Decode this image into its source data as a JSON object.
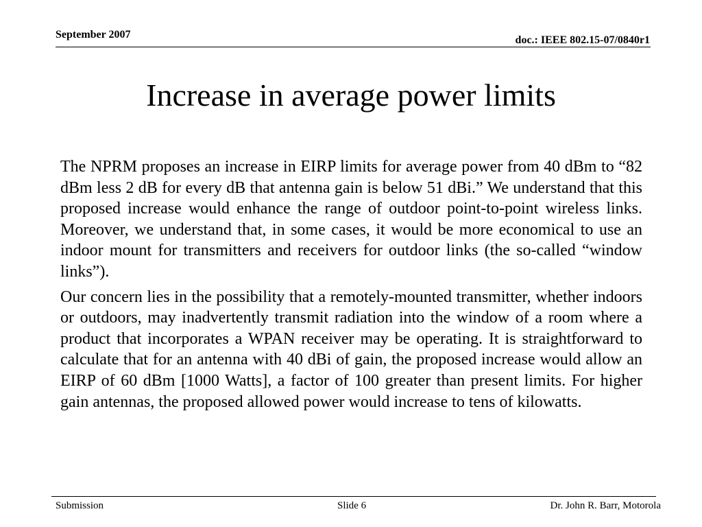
{
  "header": {
    "date": "September 2007",
    "doc_id": "doc.: IEEE 802.15-07/0840r1"
  },
  "slide": {
    "title": "Increase in average power limits",
    "paragraphs": [
      "The NPRM proposes an increase in EIRP limits for average power from 40 dBm to “82 dBm less 2 dB for every dB that antenna gain is below 51 dBi.” We understand that this proposed increase would enhance the range of outdoor point-to-point wireless links. Moreover, we understand that, in some cases, it would be more economical to use an indoor mount for transmitters and receivers for outdoor links (the so-called “window links”).",
      "Our concern lies in the possibility that a remotely-mounted transmitter, whether indoors or outdoors, may inadvertently transmit radiation into the window of a room where a product that incorporates a WPAN receiver may be operating. It is straightforward to calculate that for an antenna with 40 dBi of gain, the proposed increase would allow an EIRP of 60 dBm [1000 Watts], a factor of 100 greater than present limits. For higher gain antennas, the proposed allowed power would increase to tens of kilowatts."
    ]
  },
  "footer": {
    "left": "Submission",
    "center": "Slide 6",
    "right": "Dr. John R. Barr, Motorola"
  }
}
